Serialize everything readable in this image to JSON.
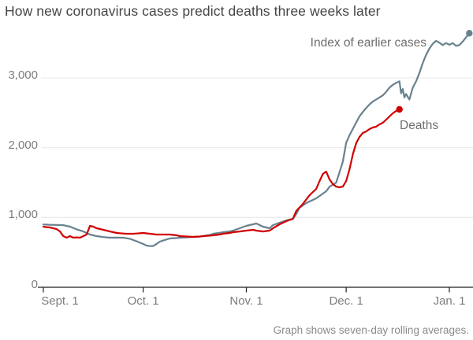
{
  "title": "How new coronavirus cases predict deaths three weeks later",
  "annotations": {
    "cases_label": "Index of earlier cases",
    "deaths_label": "Deaths"
  },
  "footnote": "Graph shows seven-day rolling averages.",
  "colors": {
    "cases_line": "#68818f",
    "deaths_line": "#d00000",
    "gridline": "#e8e8e8",
    "axis": "#222222",
    "title_text": "#454545",
    "tick_text": "#7d7d7d",
    "annotation_text": "#6e6e6e",
    "footnote_text": "#8a8a8a"
  },
  "chart_data": {
    "type": "line",
    "title": "How new coronavirus cases predict deaths three weeks later",
    "note": "Graph shows seven-day rolling averages.",
    "x_axis": {
      "unit": "days since Sept. 1",
      "ticks": [
        {
          "label": "Sept. 1",
          "day": 0,
          "label_dx": 21
        },
        {
          "label": "Oct. 1",
          "day": 30,
          "label_dx": 0
        },
        {
          "label": "Nov. 1",
          "day": 61,
          "label_dx": 0
        },
        {
          "label": "Dec. 1",
          "day": 91,
          "label_dx": 0
        },
        {
          "label": "Jan. 1",
          "day": 122,
          "label_dx": 0
        }
      ]
    },
    "y_axis": {
      "ticks": [
        0,
        1000,
        2000,
        3000
      ],
      "tick_labels": [
        "0",
        "1,000",
        "2,000",
        "3,000"
      ],
      "range": [
        0,
        3700
      ],
      "grid": true
    },
    "legend_position": "end-of-line labels",
    "series": [
      {
        "name": "Index of earlier cases",
        "color": "#68818f",
        "end_dot": true,
        "points": [
          [
            0,
            900
          ],
          [
            2,
            895
          ],
          [
            4,
            893
          ],
          [
            6,
            890
          ],
          [
            8,
            868
          ],
          [
            10,
            830
          ],
          [
            12,
            800
          ],
          [
            14,
            756
          ],
          [
            16,
            733
          ],
          [
            18,
            720
          ],
          [
            20,
            710
          ],
          [
            22,
            712
          ],
          [
            24,
            710
          ],
          [
            26,
            695
          ],
          [
            27,
            677
          ],
          [
            28,
            660
          ],
          [
            29,
            640
          ],
          [
            30,
            620
          ],
          [
            31,
            598
          ],
          [
            32,
            590
          ],
          [
            33,
            592
          ],
          [
            34,
            620
          ],
          [
            35,
            654
          ],
          [
            36,
            670
          ],
          [
            38,
            699
          ],
          [
            40,
            705
          ],
          [
            41,
            710
          ],
          [
            43,
            715
          ],
          [
            45,
            722
          ],
          [
            47,
            728
          ],
          [
            48,
            733
          ],
          [
            50,
            750
          ],
          [
            51,
            767
          ],
          [
            53,
            780
          ],
          [
            54,
            789
          ],
          [
            56,
            800
          ],
          [
            57,
            812
          ],
          [
            59,
            846
          ],
          [
            61,
            880
          ],
          [
            63,
            902
          ],
          [
            64,
            913
          ],
          [
            66,
            868
          ],
          [
            68,
            846
          ],
          [
            69,
            891
          ],
          [
            71,
            925
          ],
          [
            73,
            958
          ],
          [
            75,
            981
          ],
          [
            76,
            1050
          ],
          [
            77,
            1139
          ],
          [
            79,
            1207
          ],
          [
            82,
            1274
          ],
          [
            85,
            1376
          ],
          [
            86,
            1440
          ],
          [
            88,
            1500
          ],
          [
            89,
            1650
          ],
          [
            90,
            1800
          ],
          [
            91,
            2070
          ],
          [
            92,
            2180
          ],
          [
            93,
            2270
          ],
          [
            94,
            2360
          ],
          [
            95,
            2450
          ],
          [
            96,
            2510
          ],
          [
            97,
            2570
          ],
          [
            98,
            2620
          ],
          [
            99,
            2660
          ],
          [
            100,
            2690
          ],
          [
            101,
            2720
          ],
          [
            102,
            2750
          ],
          [
            103,
            2800
          ],
          [
            104,
            2860
          ],
          [
            105,
            2900
          ],
          [
            106,
            2930
          ],
          [
            107,
            2950
          ],
          [
            107.5,
            2780
          ],
          [
            108,
            2840
          ],
          [
            108.5,
            2720
          ],
          [
            109,
            2770
          ],
          [
            110,
            2690
          ],
          [
            111,
            2860
          ],
          [
            112,
            2950
          ],
          [
            113,
            3070
          ],
          [
            114,
            3210
          ],
          [
            115,
            3330
          ],
          [
            116,
            3420
          ],
          [
            117,
            3490
          ],
          [
            118,
            3530
          ],
          [
            119,
            3505
          ],
          [
            120,
            3470
          ],
          [
            121,
            3500
          ],
          [
            122,
            3475
          ],
          [
            123,
            3500
          ],
          [
            124,
            3460
          ],
          [
            125,
            3470
          ],
          [
            126,
            3520
          ],
          [
            127,
            3580
          ],
          [
            128,
            3640
          ]
        ]
      },
      {
        "name": "Deaths",
        "color": "#d00000",
        "end_dot": true,
        "points": [
          [
            0,
            868
          ],
          [
            1,
            862
          ],
          [
            2,
            857
          ],
          [
            3,
            845
          ],
          [
            4,
            834
          ],
          [
            5,
            800
          ],
          [
            6,
            733
          ],
          [
            7,
            710
          ],
          [
            8,
            733
          ],
          [
            9,
            710
          ],
          [
            10,
            715
          ],
          [
            11,
            710
          ],
          [
            12,
            733
          ],
          [
            13,
            756
          ],
          [
            14,
            880
          ],
          [
            15,
            868
          ],
          [
            16,
            846
          ],
          [
            17,
            835
          ],
          [
            18,
            823
          ],
          [
            19,
            812
          ],
          [
            20,
            800
          ],
          [
            21,
            790
          ],
          [
            22,
            778
          ],
          [
            24,
            770
          ],
          [
            25,
            767
          ],
          [
            27,
            767
          ],
          [
            28,
            770
          ],
          [
            30,
            778
          ],
          [
            32,
            767
          ],
          [
            34,
            756
          ],
          [
            36,
            756
          ],
          [
            38,
            756
          ],
          [
            40,
            745
          ],
          [
            41,
            733
          ],
          [
            43,
            728
          ],
          [
            45,
            722
          ],
          [
            47,
            728
          ],
          [
            48,
            733
          ],
          [
            50,
            740
          ],
          [
            51,
            744
          ],
          [
            53,
            756
          ],
          [
            54,
            767
          ],
          [
            56,
            778
          ],
          [
            57,
            789
          ],
          [
            59,
            800
          ],
          [
            61,
            812
          ],
          [
            63,
            823
          ],
          [
            64,
            812
          ],
          [
            66,
            800
          ],
          [
            68,
            812
          ],
          [
            69,
            846
          ],
          [
            71,
            902
          ],
          [
            73,
            947
          ],
          [
            75,
            981
          ],
          [
            76,
            1094
          ],
          [
            78,
            1195
          ],
          [
            80,
            1319
          ],
          [
            82,
            1410
          ],
          [
            83,
            1522
          ],
          [
            84,
            1624
          ],
          [
            85,
            1658
          ],
          [
            86,
            1545
          ],
          [
            87,
            1477
          ],
          [
            88,
            1443
          ],
          [
            89,
            1432
          ],
          [
            90,
            1443
          ],
          [
            91,
            1522
          ],
          [
            92,
            1692
          ],
          [
            93,
            1906
          ],
          [
            94,
            2064
          ],
          [
            95,
            2154
          ],
          [
            96,
            2210
          ],
          [
            97,
            2233
          ],
          [
            98,
            2267
          ],
          [
            99,
            2290
          ],
          [
            100,
            2301
          ],
          [
            101,
            2335
          ],
          [
            102,
            2357
          ],
          [
            103,
            2402
          ],
          [
            104,
            2447
          ],
          [
            105,
            2493
          ],
          [
            106,
            2526
          ],
          [
            107,
            2549
          ]
        ]
      }
    ]
  }
}
